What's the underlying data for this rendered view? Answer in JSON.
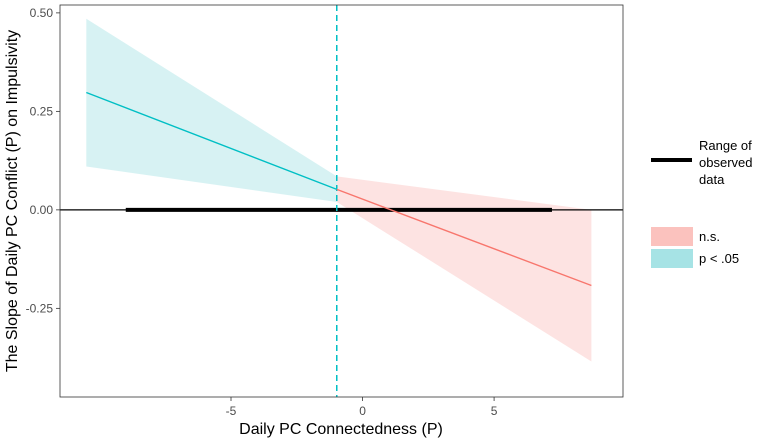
{
  "chart_data": {
    "type": "line",
    "title": "",
    "xlabel": "Daily PC Connectedness (P)",
    "ylabel": "The Slope of Daily PC Conflict (P) on Impulsivity",
    "xlim": [
      -11.5,
      9.9
    ],
    "ylim": [
      -0.475,
      0.52
    ],
    "x_ticks": [
      {
        "value": -5,
        "label": "-5"
      },
      {
        "value": 0,
        "label": "0"
      },
      {
        "value": 5,
        "label": "5"
      }
    ],
    "y_ticks": [
      {
        "value": 0.5,
        "label": "0.50"
      },
      {
        "value": 0.25,
        "label": "0.25"
      },
      {
        "value": 0.0,
        "label": "0.00"
      },
      {
        "value": -0.25,
        "label": "-0.25"
      }
    ],
    "series": [
      {
        "name": "p < .05",
        "color": "#00BFC4",
        "fill": "#A6E3E5",
        "x": [
          -10.5,
          -0.98
        ],
        "y": [
          0.298,
          0.052
        ],
        "ci_lower": [
          0.11,
          0.02
        ],
        "ci_upper": [
          0.485,
          0.085
        ]
      },
      {
        "name": "n.s.",
        "color": "#F8766D",
        "fill": "#FBC2BE",
        "x": [
          -0.98,
          8.7
        ],
        "y": [
          0.052,
          -0.192
        ],
        "ci_lower": [
          0.02,
          -0.385
        ],
        "ci_upper": [
          0.085,
          0.0
        ]
      }
    ],
    "reference_lines": {
      "horizontal_y": 0,
      "vertical_dashed_x": -0.98
    },
    "observed_range": {
      "x_start": -9.0,
      "x_end": 7.2,
      "y": 0
    },
    "legend": {
      "position": "right",
      "range_label_lines": [
        "Range of",
        "observed",
        "data"
      ],
      "entries": [
        {
          "label": "n.s.",
          "color": "#FBC2BE"
        },
        {
          "label": "p < .05",
          "color": "#A6E3E5"
        }
      ]
    }
  }
}
